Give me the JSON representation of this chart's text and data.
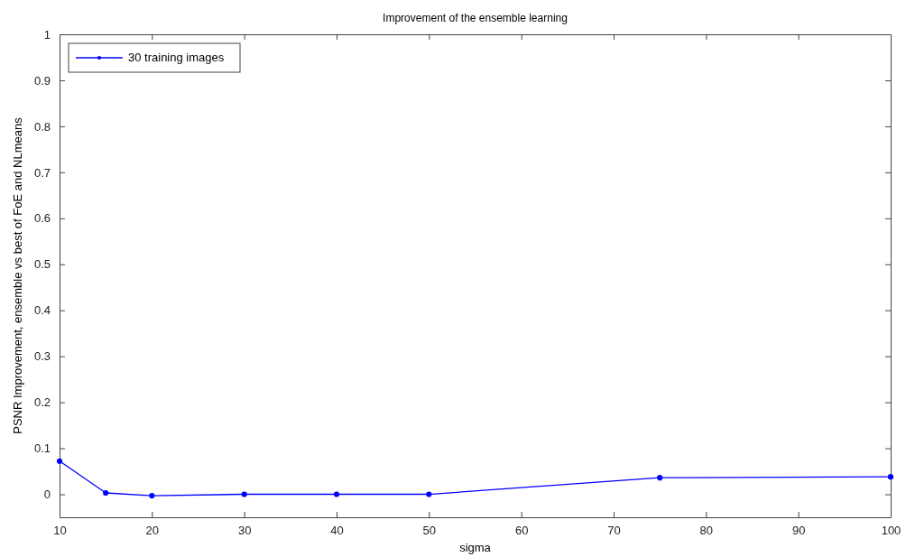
{
  "chart_data": {
    "type": "line",
    "title": "Improvement of the ensemble learning",
    "xlabel": "sigma",
    "ylabel": "PSNR Improvement, ensemble vs best of FoE and NLmeans",
    "x": [
      10,
      15,
      20,
      30,
      40,
      50,
      75,
      100
    ],
    "series": [
      {
        "name": "30 training images",
        "color": "#0000ff",
        "values": [
          0.072,
          0.003,
          -0.003,
          0,
          0,
          0,
          0.036,
          0.038
        ]
      }
    ],
    "xlim": [
      10,
      100
    ],
    "xticks": [
      10,
      20,
      30,
      40,
      50,
      60,
      70,
      80,
      90,
      100
    ],
    "ylim": [
      -0.05,
      1
    ],
    "yticks": [
      0,
      0.1,
      0.2,
      0.3,
      0.4,
      0.5,
      0.6,
      0.7,
      0.8,
      0.9,
      1
    ],
    "legend": "top left",
    "marker": "circle",
    "line_style": "solid",
    "grid": false
  }
}
